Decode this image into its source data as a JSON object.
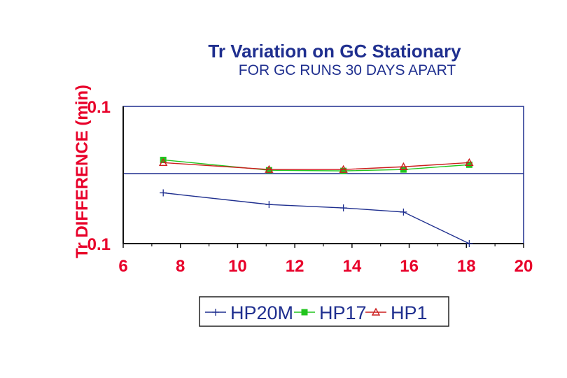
{
  "chart_data": {
    "type": "line",
    "title": "Tr Variation on GC Stationary",
    "subtitle": "FOR GC RUNS 30 DAYS APART",
    "xlabel": "",
    "ylabel": "Tr DIFFERENCE (min)",
    "xlim": [
      6,
      20
    ],
    "xticks": [
      "6",
      "8",
      "10",
      "12",
      "14",
      "16",
      "18",
      "20"
    ],
    "xtick_values": [
      6,
      8,
      10,
      12,
      14,
      16,
      18,
      20
    ],
    "ylim": [
      -0.1,
      0.1
    ],
    "yticks": [
      "0.1",
      "0",
      "-0.1"
    ],
    "ytick_labels_shown": [
      "0.1",
      "0.1"
    ],
    "grid": "horizontal zero line",
    "legend_position": "bottom",
    "series": [
      {
        "name": "HP20M",
        "color": "#1f2f8f",
        "marker": "plus",
        "x": [
          7.4,
          11.1,
          13.7,
          15.8,
          18.1
        ],
        "y": [
          -0.026,
          -0.043,
          -0.048,
          -0.054,
          -0.1
        ]
      },
      {
        "name": "HP17",
        "color": "#22c41e",
        "marker": "square",
        "x": [
          7.4,
          11.1,
          13.7,
          15.8,
          18.1
        ],
        "y": [
          0.022,
          0.007,
          0.006,
          0.008,
          0.015
        ]
      },
      {
        "name": "HP1",
        "color": "#cc1f1f",
        "marker": "triangle",
        "x": [
          7.4,
          11.1,
          13.7,
          15.8,
          18.1
        ],
        "y": [
          0.018,
          0.008,
          0.008,
          0.012,
          0.018
        ]
      }
    ]
  }
}
